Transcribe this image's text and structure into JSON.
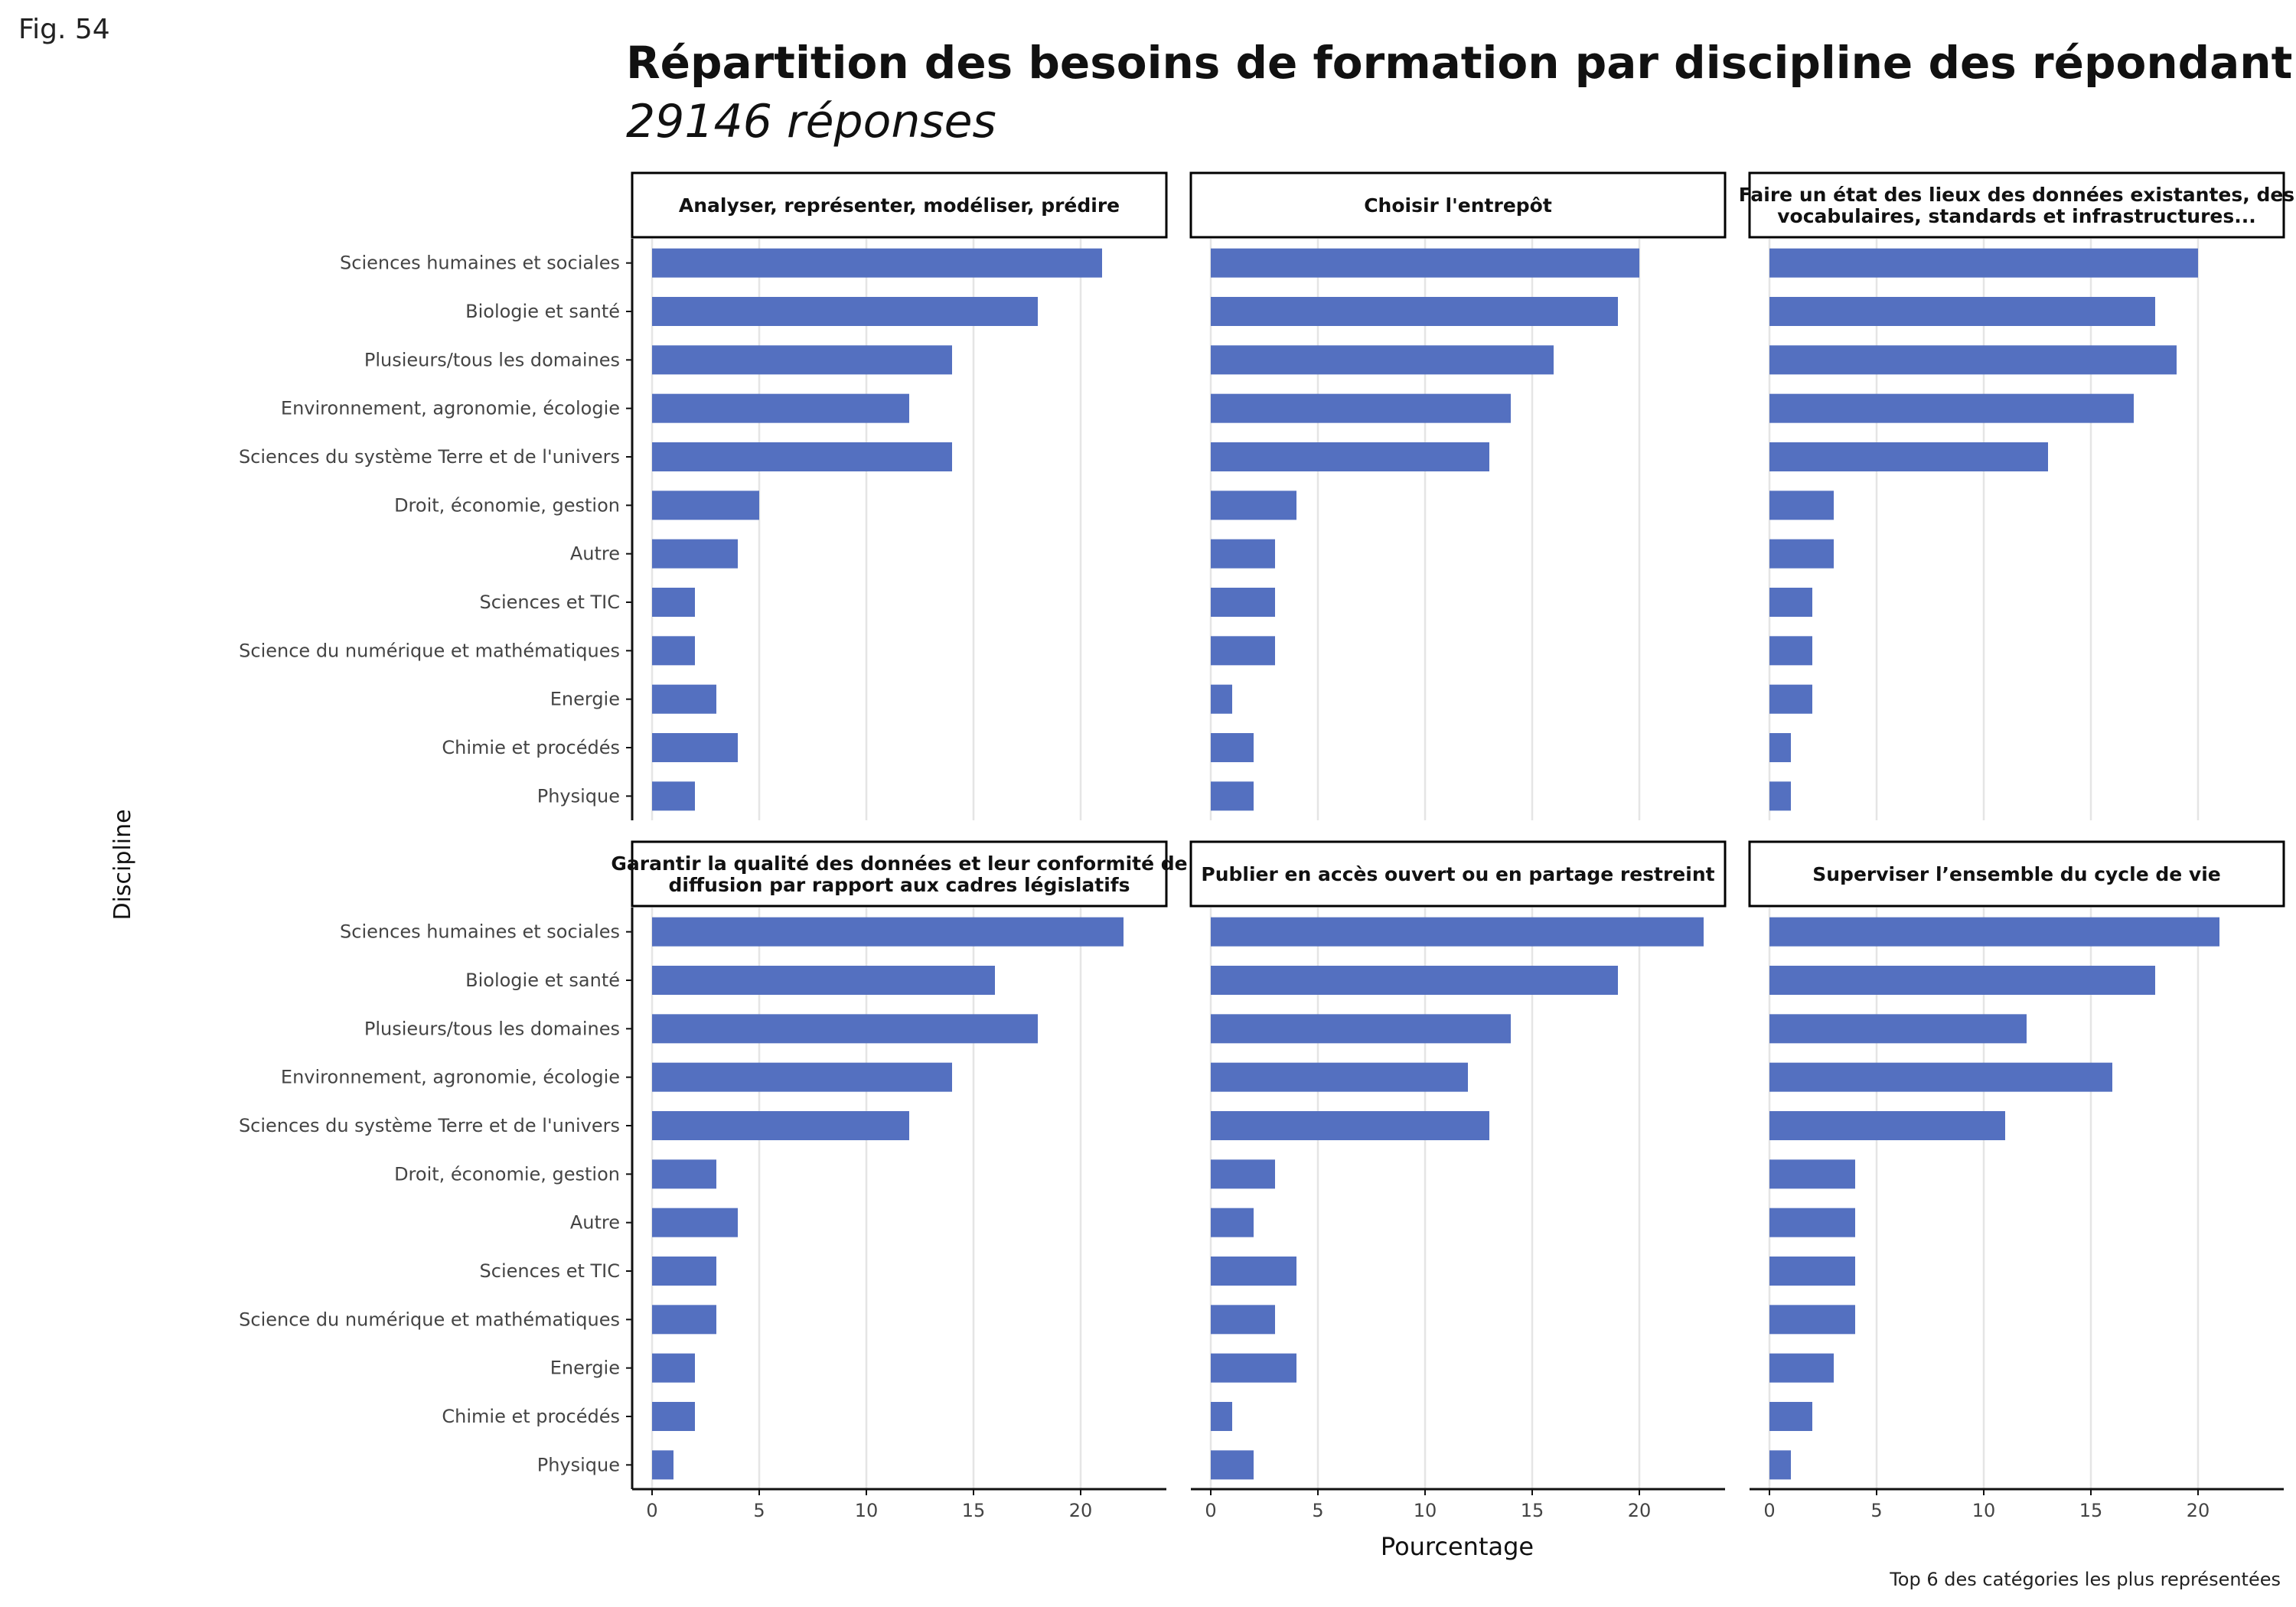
{
  "figure_label": "Fig. 54",
  "colors": {
    "bar": "#5470c0",
    "grid": "#e5e5e5",
    "axis": "#111111"
  },
  "chart_data": {
    "type": "bar",
    "orientation": "horizontal",
    "title": "Répartition des besoins de formation par discipline des répondant(e)s",
    "subtitle": "29146 réponses",
    "xlabel": "Pourcentage",
    "ylabel": "Discipline",
    "caption": "Top 6 des catégories les plus représentées",
    "xlim": [
      0,
      24
    ],
    "xticks": [
      0,
      5,
      10,
      15,
      20
    ],
    "grid": true,
    "categories": [
      "Sciences humaines et sociales",
      "Biologie et santé",
      "Plusieurs/tous les domaines",
      "Environnement, agronomie, écologie",
      "Sciences du système Terre et de l'univers",
      "Droit, économie, gestion",
      "Autre",
      "Sciences et TIC",
      "Science du numérique et mathématiques",
      "Energie",
      "Chimie et procédés",
      "Physique"
    ],
    "facets": [
      {
        "title_lines": [
          "Analyser, représenter, modéliser, prédire"
        ],
        "values": [
          21,
          18,
          14,
          12,
          14,
          5,
          4,
          2,
          2,
          3,
          4,
          2
        ]
      },
      {
        "title_lines": [
          "Choisir l'entrepôt"
        ],
        "values": [
          20,
          19,
          16,
          14,
          13,
          4,
          3,
          3,
          3,
          1,
          2,
          2
        ]
      },
      {
        "title_lines": [
          "Faire un état des lieux des données existantes, des",
          "vocabulaires, standards et infrastructures..."
        ],
        "values": [
          20,
          18,
          19,
          17,
          13,
          3,
          3,
          2,
          2,
          2,
          1,
          1
        ]
      },
      {
        "title_lines": [
          "Garantir la qualité des données et leur conformité de",
          "diffusion par rapport aux cadres législatifs"
        ],
        "values": [
          22,
          16,
          18,
          14,
          12,
          3,
          4,
          3,
          3,
          2,
          2,
          1
        ]
      },
      {
        "title_lines": [
          "Publier en accès ouvert ou en partage restreint"
        ],
        "values": [
          23,
          19,
          14,
          12,
          13,
          3,
          2,
          4,
          3,
          4,
          1,
          2
        ]
      },
      {
        "title_lines": [
          "Superviser l’ensemble du cycle de vie"
        ],
        "values": [
          21,
          18,
          12,
          16,
          11,
          4,
          4,
          4,
          4,
          3,
          2,
          1
        ]
      }
    ]
  }
}
